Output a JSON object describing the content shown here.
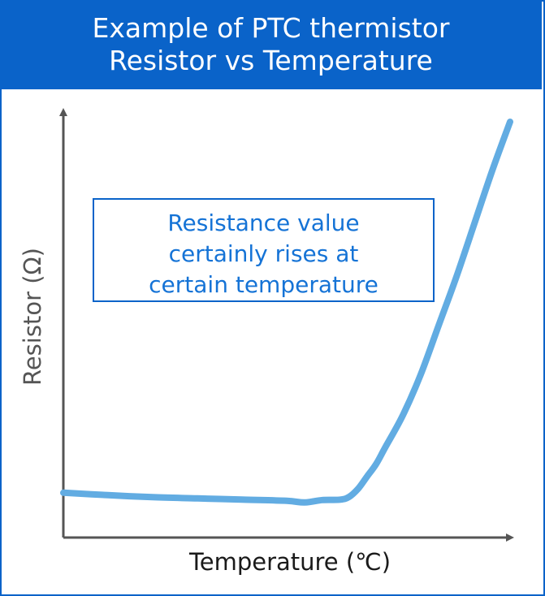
{
  "header": {
    "title_line1": "Example of PTC thermistor",
    "title_line2": "Resistor vs Temperature"
  },
  "chart_data": {
    "type": "line",
    "title": "Example of PTC thermistor Resistor vs Temperature",
    "xlabel": "Temperature (℃)",
    "ylabel": "Resistor (Ω)",
    "xlim": [
      0,
      100
    ],
    "ylim": [
      0,
      100
    ],
    "grid": false,
    "axis_ticks": false,
    "series": [
      {
        "name": "PTC thermistor",
        "color": "#62ace2",
        "x": [
          0,
          10,
          20,
          30,
          40,
          50,
          54,
          58,
          62,
          64,
          66,
          68,
          70,
          72,
          76,
          80,
          84,
          88,
          92,
          96,
          100
        ],
        "y": [
          11,
          10.4,
          9.9,
          9.6,
          9.3,
          9.0,
          8.6,
          9.2,
          9.3,
          10,
          12,
          15,
          18,
          22,
          30,
          40,
          52,
          64,
          77,
          90,
          102
        ]
      }
    ],
    "annotations": [
      {
        "text_lines": [
          "Resistance value",
          "certainly rises at",
          "certain temperature"
        ]
      }
    ]
  }
}
